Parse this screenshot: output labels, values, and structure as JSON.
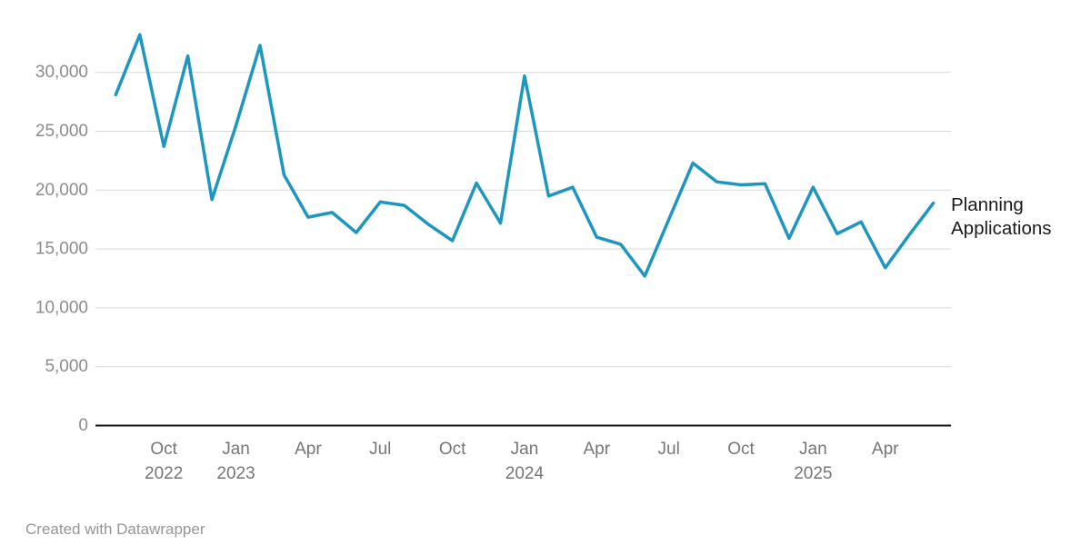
{
  "chart_data": {
    "type": "line",
    "series_label": "Planning Applications",
    "x": [
      "Aug 2022",
      "Sep 2022",
      "Oct 2022",
      "Nov 2022",
      "Dec 2022",
      "Jan 2023",
      "Feb 2023",
      "Mar 2023",
      "Apr 2023",
      "May 2023",
      "Jun 2023",
      "Jul 2023",
      "Aug 2023",
      "Sep 2023",
      "Oct 2023",
      "Nov 2023",
      "Dec 2023",
      "Jan 2024",
      "Feb 2024",
      "Mar 2024",
      "Apr 2024",
      "May 2024",
      "Jun 2024",
      "Jul 2024",
      "Aug 2024",
      "Sep 2024",
      "Oct 2024",
      "Nov 2024",
      "Dec 2024",
      "Jan 2025",
      "Feb 2025",
      "Mar 2025",
      "Apr 2025",
      "May 2025",
      "Jun 2025"
    ],
    "values": [
      28100,
      33200,
      23700,
      31400,
      19200,
      25500,
      32300,
      21300,
      17700,
      18100,
      16400,
      19000,
      18700,
      17100,
      15700,
      20600,
      17200,
      29700,
      19500,
      20250,
      16000,
      15400,
      12700,
      17500,
      22300,
      20700,
      20450,
      20550,
      15900,
      20250,
      16300,
      17300,
      13400,
      16200,
      18900
    ],
    "ylim": [
      0,
      34000
    ],
    "y_ticks": [
      0,
      5000,
      10000,
      15000,
      20000,
      25000,
      30000
    ],
    "y_tick_labels": [
      "0",
      "5,000",
      "10,000",
      "15,000",
      "20,000",
      "25,000",
      "30,000"
    ],
    "x_ticks": [
      {
        "index": 2,
        "month": "Oct",
        "year": "2022"
      },
      {
        "index": 5,
        "month": "Jan",
        "year": "2023"
      },
      {
        "index": 8,
        "month": "Apr",
        "year": ""
      },
      {
        "index": 11,
        "month": "Jul",
        "year": ""
      },
      {
        "index": 14,
        "month": "Oct",
        "year": ""
      },
      {
        "index": 17,
        "month": "Jan",
        "year": "2024"
      },
      {
        "index": 20,
        "month": "Apr",
        "year": ""
      },
      {
        "index": 23,
        "month": "Jul",
        "year": ""
      },
      {
        "index": 26,
        "month": "Oct",
        "year": ""
      },
      {
        "index": 29,
        "month": "Jan",
        "year": "2025"
      },
      {
        "index": 32,
        "month": "Apr",
        "year": ""
      }
    ],
    "grid": "horizontal",
    "legend_position": "right-of-line-end"
  },
  "colors": {
    "line": "#1d96c0",
    "grid": "#d9d9d9",
    "axis": "#111111",
    "y_label": "#8c8c8c",
    "x_label": "#767676",
    "series_label": "#1a1a1a",
    "credit": "#959595"
  },
  "footer": {
    "credit": "Created with Datawrapper"
  }
}
